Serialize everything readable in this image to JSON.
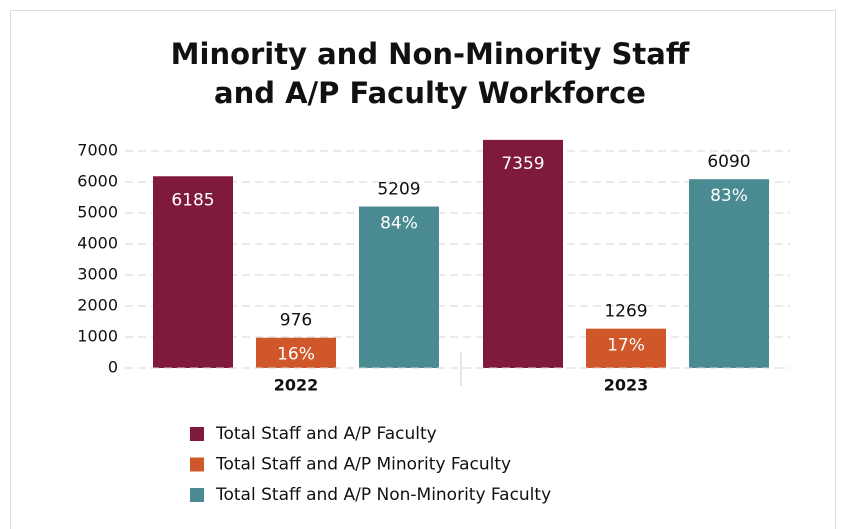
{
  "chart_data": {
    "type": "bar",
    "title": [
      "Minority and Non-Minority Staff",
      "and A/P Faculty Workforce"
    ],
    "categories": [
      "2022",
      "2023"
    ],
    "series": [
      {
        "name": "Total Staff and A/P Faculty",
        "color": "#7f1a3d",
        "values": [
          6185,
          7359
        ]
      },
      {
        "name": "Total Staff and A/P Minority Faculty",
        "color": "#d0572a",
        "values": [
          976,
          1269
        ],
        "annotations": [
          "16%",
          "17%"
        ]
      },
      {
        "name": "Total Staff and A/P Non-Minority Faculty",
        "color": "#4a8a91",
        "values": [
          5209,
          6090
        ],
        "annotations": [
          "84%",
          "83%"
        ]
      }
    ],
    "ylim": [
      0,
      7000
    ],
    "yticks": [
      0,
      1000,
      2000,
      3000,
      4000,
      5000,
      6000,
      7000
    ],
    "grid": true
  }
}
